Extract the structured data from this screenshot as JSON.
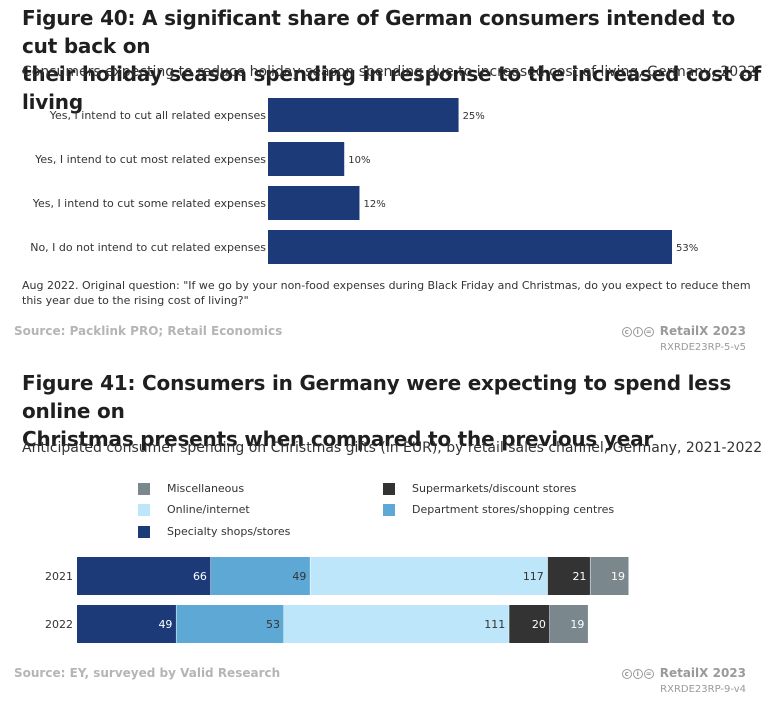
{
  "figure40": {
    "title_line1": "Figure 40: A significant share of German consumers intended to cut back on",
    "title_line2": "their holiday season spending in response to the increased cost of living",
    "subtitle": "Consumers expecting to reduce holiday season spending due to increased cost of living, Germany, 2022",
    "note_line1": "Aug 2022. Original question: \"If we go by your non-food expenses during Black Friday and Christmas, do you expect to reduce them",
    "note_line2": "this year due to the rising cost of living?\"",
    "source": "Source: Packlink PRO; Retail Economics",
    "brand": "RetailX 2023",
    "code": "RXRDE23RP-5-v5"
  },
  "figure41": {
    "title_line1": "Figure 41: Consumers in Germany were expecting to spend less online on",
    "title_line2": "Christmas presents when compared to the previous year",
    "subtitle": "Anticipated consumer spending on Christmas gifts (in EUR), by retail sales channel, Germany, 2021-2022",
    "source": "Source: EY, surveyed by Valid Research",
    "brand": "RetailX 2023",
    "code": "RXRDE23RP-9-v4"
  },
  "chart_data": [
    {
      "type": "bar",
      "orientation": "horizontal",
      "title": "Consumers expecting to reduce holiday season spending due to increased cost of living, Germany, 2022",
      "categories": [
        "Yes, I intend to cut all related expenses",
        "Yes, I intend to cut most related expenses",
        "Yes, I intend to cut some related expenses",
        "No, I do not intend to cut related expenses"
      ],
      "values": [
        25,
        10,
        12,
        53
      ],
      "value_labels": [
        "25%",
        "10%",
        "12%",
        "53%"
      ],
      "unit": "%",
      "xlim": [
        0,
        55
      ],
      "color": "#1c3a78"
    },
    {
      "type": "bar",
      "orientation": "horizontal",
      "stacked": true,
      "title": "Anticipated consumer spending on Christmas gifts (in EUR), by retail sales channel, Germany, 2021-2022",
      "categories": [
        "2021",
        "2022"
      ],
      "xlim": [
        0,
        272
      ],
      "series": [
        {
          "name": "Specialty shops/stores",
          "values": [
            66,
            49
          ],
          "color": "#1c3a78",
          "label_color": "#ffffff"
        },
        {
          "name": "Department stores/shopping centres",
          "values": [
            49,
            53
          ],
          "color": "#5ea8d6",
          "label_color": "#333333"
        },
        {
          "name": "Online/internet",
          "values": [
            117,
            111
          ],
          "color": "#bde6fa",
          "label_color": "#333333"
        },
        {
          "name": "Supermarkets/discount stores",
          "values": [
            21,
            20
          ],
          "color": "#333333",
          "label_color": "#ffffff"
        },
        {
          "name": "Miscellaneous",
          "values": [
            19,
            19
          ],
          "color": "#7a878c",
          "label_color": "#ffffff"
        }
      ],
      "legend": [
        {
          "name": "Miscellaneous",
          "color": "#7a878c"
        },
        {
          "name": "Supermarkets/discount stores",
          "color": "#333333"
        },
        {
          "name": "Online/internet",
          "color": "#bde6fa"
        },
        {
          "name": "Department stores/shopping centres",
          "color": "#5ea8d6"
        },
        {
          "name": "Specialty shops/stores",
          "color": "#1c3a78"
        }
      ]
    }
  ]
}
